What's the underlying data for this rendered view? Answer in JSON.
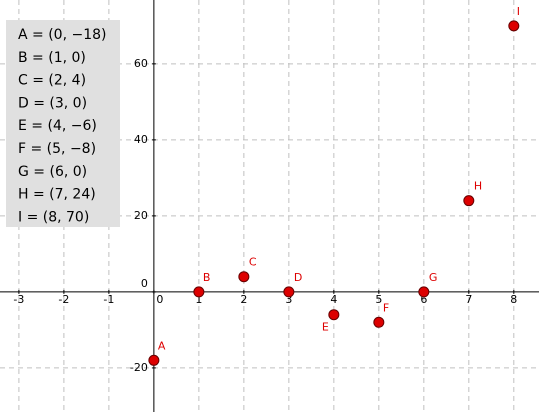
{
  "chart_data": {
    "type": "scatter",
    "x": [
      0,
      1,
      2,
      3,
      4,
      5,
      6,
      7,
      8
    ],
    "values": [
      -18,
      0,
      4,
      0,
      -6,
      -8,
      0,
      24,
      70
    ],
    "point_labels": [
      "A",
      "B",
      "C",
      "D",
      "E",
      "F",
      "G",
      "H",
      "I"
    ],
    "color": "#dd0000",
    "xlim": [
      -3.42,
      8.56
    ],
    "ylim": [
      -31.6,
      76.8
    ],
    "xticks": [
      -3,
      -2,
      -1,
      0,
      1,
      2,
      3,
      4,
      5,
      6,
      7,
      8
    ],
    "yticks": [
      -20,
      0,
      20,
      40,
      60
    ],
    "grid": true,
    "algebra_view": [
      "A = (0, −18)",
      "B = (1, 0)",
      "C = (2, 4)",
      "D = (3, 0)",
      "E = (4, −6)",
      "F = (5, −8)",
      "G = (6, 0)",
      "H = (7, 24)",
      "I = (8, 70)"
    ]
  }
}
